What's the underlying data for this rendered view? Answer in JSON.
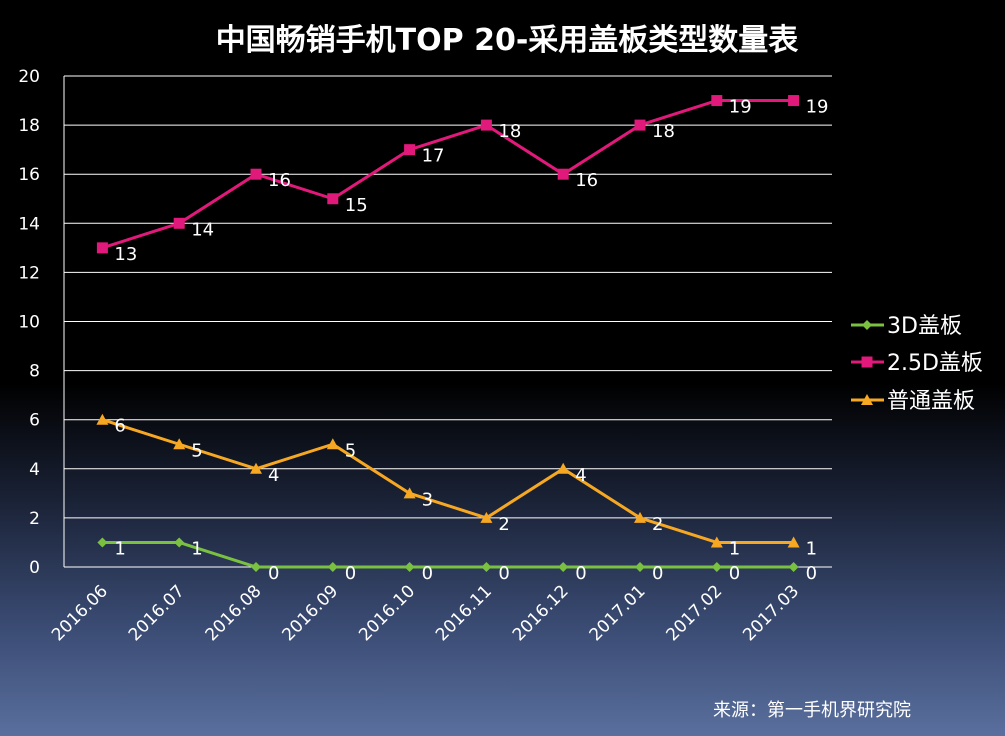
{
  "chart_data": {
    "type": "line",
    "title": "中国畅销手机TOP 20-采用盖板类型数量表",
    "categories": [
      "2016.06",
      "2016.07",
      "2016.08",
      "2016.09",
      "2016.10",
      "2016.11",
      "2016.12",
      "2017.01",
      "2017.02",
      "2017.03"
    ],
    "ylim": [
      0,
      20
    ],
    "yticks": [
      "0",
      "2",
      "4",
      "6",
      "8",
      "10",
      "12",
      "14",
      "16",
      "18",
      "20"
    ],
    "grid": true,
    "legend_position": "right",
    "series": [
      {
        "name": "3D盖板",
        "color": "#7ac142",
        "marker": "diamond",
        "values": [
          1,
          1,
          0,
          0,
          0,
          0,
          0,
          0,
          0,
          0
        ]
      },
      {
        "name": "2.5D盖板",
        "color": "#e0197a",
        "marker": "square",
        "values": [
          13,
          14,
          16,
          15,
          17,
          18,
          16,
          18,
          19,
          19
        ]
      },
      {
        "name": "普通盖板",
        "color": "#f7a823",
        "marker": "triangle",
        "values": [
          6,
          5,
          4,
          5,
          3,
          2,
          4,
          2,
          1,
          1
        ]
      }
    ]
  },
  "source": "来源：第一手机界研究院"
}
